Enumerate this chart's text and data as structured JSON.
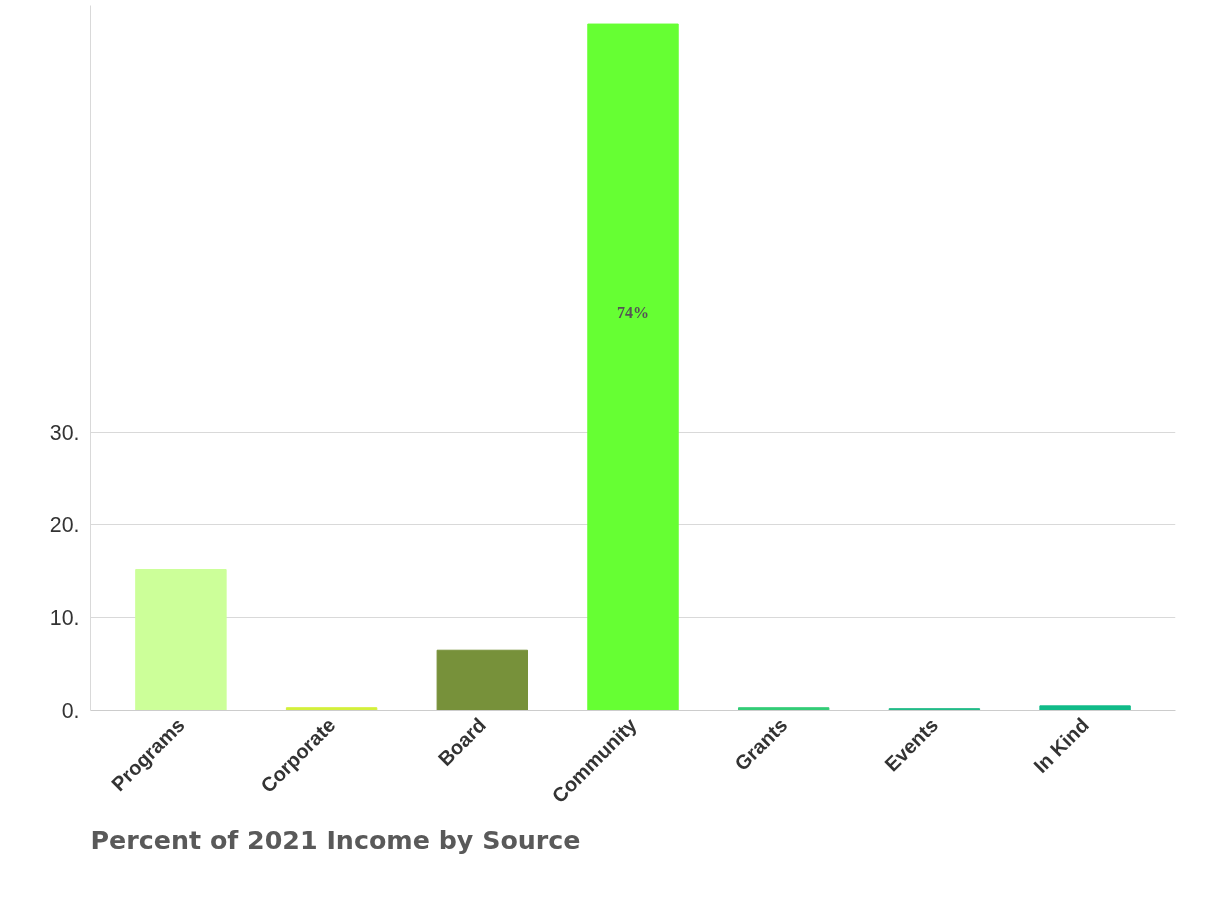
{
  "chart_data": {
    "type": "bar",
    "title": "Percent of 2021 Income by Source",
    "categories": [
      "Programs",
      "Corporate",
      "Board",
      "Community",
      "Grants",
      "Events",
      "In Kind"
    ],
    "values": [
      15.2,
      0.3,
      6.5,
      74,
      0.3,
      0.2,
      0.5
    ],
    "colors": [
      "#ccff99",
      "#d4f03c",
      "#77913a",
      "#66ff33",
      "#33cc77",
      "#22bb88",
      "#11bb88"
    ],
    "value_labels": [
      null,
      null,
      null,
      "74%",
      null,
      null,
      null
    ],
    "ylim": [
      0,
      76
    ],
    "yticks": [
      {
        "value": 0,
        "label": "0."
      },
      {
        "value": 10,
        "label": "10."
      },
      {
        "value": 20,
        "label": "20."
      },
      {
        "value": 30,
        "label": "30."
      }
    ],
    "grid": "y"
  }
}
